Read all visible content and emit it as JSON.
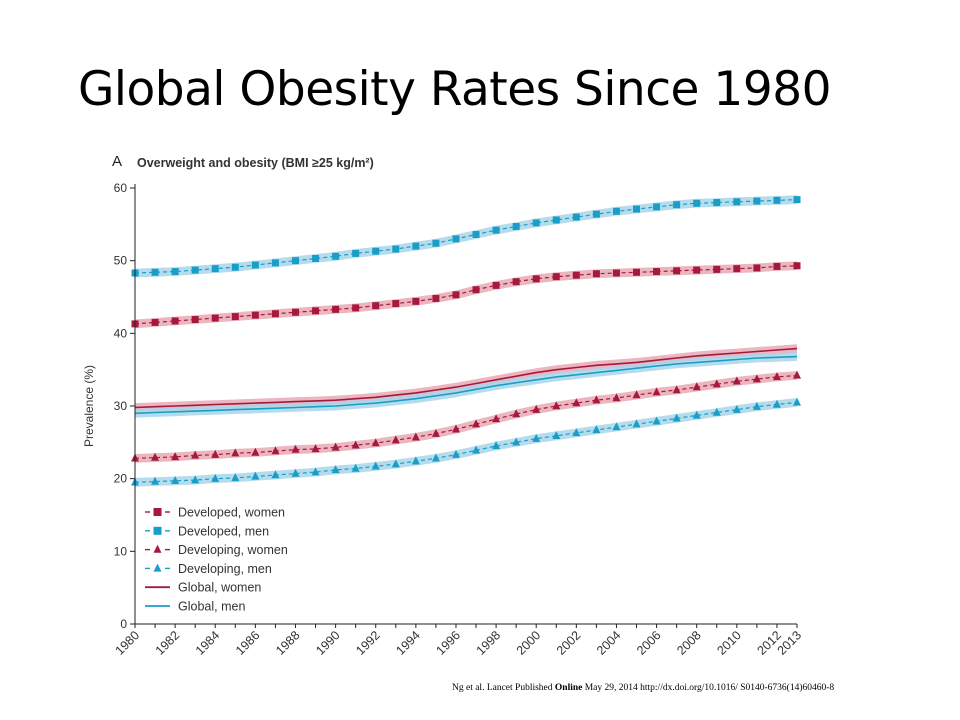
{
  "slide": {
    "title": "Global Obesity Rates Since 1980"
  },
  "citation": {
    "prefix": "Ng et al. Lancet  Published ",
    "bold": "Online",
    "suffix": " May 29, 2014 http://dx.doi.org/10.1016/ S0140-6736(14)60460-8"
  },
  "chart_data": {
    "type": "line",
    "panel_label": "A",
    "title": "Overweight and obesity (BMI ≥25 kg/m²)",
    "xlabel": "",
    "ylabel": "Prevalence (%)",
    "xlim": [
      1980,
      2013
    ],
    "ylim": [
      0,
      60
    ],
    "yticks": [
      0,
      10,
      20,
      30,
      40,
      50,
      60
    ],
    "xticks": [
      1980,
      1982,
      1984,
      1986,
      1988,
      1990,
      1992,
      1994,
      1996,
      1998,
      2000,
      2002,
      2004,
      2006,
      2008,
      2010,
      2012,
      2013
    ],
    "grid": false,
    "legend_position": "bottom-left",
    "x": [
      1980,
      1981,
      1982,
      1983,
      1984,
      1985,
      1986,
      1987,
      1988,
      1989,
      1990,
      1991,
      1992,
      1993,
      1994,
      1995,
      1996,
      1997,
      1998,
      1999,
      2000,
      2001,
      2002,
      2003,
      2004,
      2005,
      2006,
      2007,
      2008,
      2009,
      2010,
      2011,
      2012,
      2013
    ],
    "series": [
      {
        "name": "Developed, women",
        "color": "#a6193c",
        "band": "#e8a9b4",
        "marker": "square",
        "dash": true,
        "values": [
          41.3,
          41.5,
          41.7,
          41.9,
          42.1,
          42.3,
          42.5,
          42.7,
          42.9,
          43.1,
          43.3,
          43.5,
          43.8,
          44.1,
          44.4,
          44.8,
          45.3,
          46.0,
          46.6,
          47.1,
          47.5,
          47.8,
          48.0,
          48.2,
          48.3,
          48.4,
          48.5,
          48.6,
          48.7,
          48.8,
          48.9,
          49.0,
          49.2,
          49.3
        ]
      },
      {
        "name": "Developed, men",
        "color": "#1a9ec8",
        "band": "#a8d6ea",
        "marker": "square",
        "dash": true,
        "values": [
          48.3,
          48.4,
          48.5,
          48.7,
          48.9,
          49.1,
          49.4,
          49.7,
          50.0,
          50.3,
          50.6,
          51.0,
          51.3,
          51.6,
          52.0,
          52.4,
          53.0,
          53.6,
          54.2,
          54.7,
          55.2,
          55.6,
          56.0,
          56.4,
          56.8,
          57.1,
          57.4,
          57.7,
          57.9,
          58.0,
          58.1,
          58.2,
          58.3,
          58.4
        ]
      },
      {
        "name": "Developing, women",
        "color": "#a6193c",
        "band": "#e8a9b4",
        "marker": "triangle",
        "dash": true,
        "values": [
          22.8,
          22.9,
          23.0,
          23.2,
          23.3,
          23.5,
          23.6,
          23.8,
          24.0,
          24.1,
          24.3,
          24.6,
          24.9,
          25.3,
          25.7,
          26.2,
          26.8,
          27.5,
          28.2,
          28.9,
          29.5,
          30.0,
          30.4,
          30.8,
          31.1,
          31.5,
          31.9,
          32.2,
          32.6,
          33.0,
          33.4,
          33.7,
          34.0,
          34.2
        ]
      },
      {
        "name": "Developing, men",
        "color": "#1a9ec8",
        "band": "#a8d6ea",
        "marker": "triangle",
        "dash": true,
        "values": [
          19.5,
          19.6,
          19.7,
          19.8,
          20.0,
          20.1,
          20.3,
          20.5,
          20.7,
          20.9,
          21.2,
          21.4,
          21.7,
          22.0,
          22.4,
          22.8,
          23.3,
          23.9,
          24.5,
          25.0,
          25.5,
          25.9,
          26.3,
          26.7,
          27.1,
          27.5,
          27.9,
          28.3,
          28.7,
          29.1,
          29.5,
          29.9,
          30.2,
          30.5
        ]
      },
      {
        "name": "Global, women",
        "color": "#a6193c",
        "band": "#e8a9b4",
        "marker": "none",
        "dash": false,
        "values": [
          29.8,
          29.9,
          30.0,
          30.1,
          30.2,
          30.3,
          30.4,
          30.5,
          30.6,
          30.7,
          30.8,
          31.0,
          31.2,
          31.5,
          31.8,
          32.2,
          32.6,
          33.1,
          33.6,
          34.1,
          34.6,
          35.0,
          35.3,
          35.6,
          35.8,
          36.0,
          36.3,
          36.6,
          36.9,
          37.1,
          37.3,
          37.5,
          37.7,
          37.9
        ]
      },
      {
        "name": "Global, men",
        "color": "#1a9ec8",
        "band": "#a8d6ea",
        "marker": "none",
        "dash": false,
        "values": [
          29.0,
          29.1,
          29.2,
          29.3,
          29.4,
          29.5,
          29.6,
          29.7,
          29.8,
          29.9,
          30.0,
          30.2,
          30.4,
          30.7,
          31.0,
          31.4,
          31.8,
          32.3,
          32.8,
          33.2,
          33.6,
          34.0,
          34.3,
          34.6,
          34.9,
          35.2,
          35.5,
          35.8,
          36.0,
          36.2,
          36.4,
          36.6,
          36.7,
          36.8
        ]
      }
    ]
  }
}
